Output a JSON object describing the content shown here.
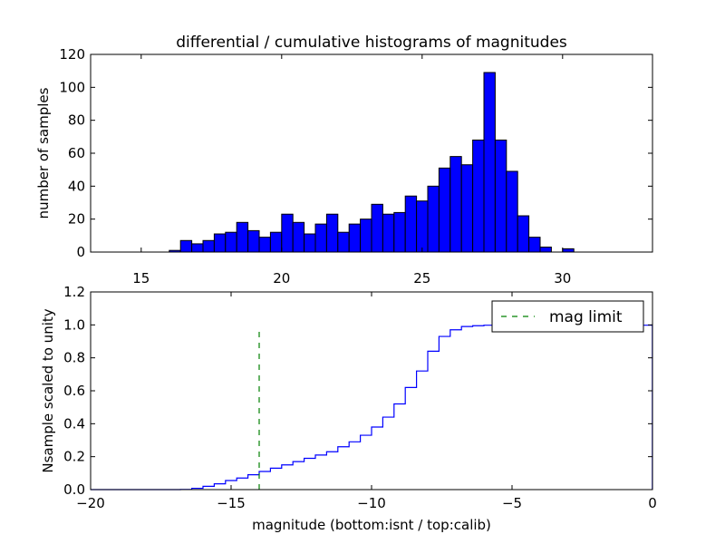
{
  "chart_data": [
    {
      "type": "bar",
      "title": "differential / cumulative histograms of magnitudes",
      "xlabel": "",
      "ylabel": "number of samples",
      "xlim": [
        13.2,
        33.2
      ],
      "ylim": [
        0,
        120
      ],
      "xticks": [
        15,
        20,
        25,
        30
      ],
      "xtick_labels": [
        "15",
        "20",
        "25",
        "30"
      ],
      "yticks": [
        0,
        20,
        40,
        60,
        80,
        100,
        120
      ],
      "ytick_labels": [
        "0",
        "20",
        "40",
        "60",
        "80",
        "100",
        "120"
      ],
      "bin_width": 0.4,
      "bins": [
        {
          "left": 16.0,
          "value": 1
        },
        {
          "left": 16.4,
          "value": 7
        },
        {
          "left": 16.8,
          "value": 5
        },
        {
          "left": 17.2,
          "value": 7
        },
        {
          "left": 17.6,
          "value": 11
        },
        {
          "left": 18.0,
          "value": 12
        },
        {
          "left": 18.4,
          "value": 18
        },
        {
          "left": 18.8,
          "value": 13
        },
        {
          "left": 19.2,
          "value": 9
        },
        {
          "left": 19.6,
          "value": 12
        },
        {
          "left": 20.0,
          "value": 23
        },
        {
          "left": 20.4,
          "value": 18
        },
        {
          "left": 20.8,
          "value": 11
        },
        {
          "left": 21.2,
          "value": 17
        },
        {
          "left": 21.6,
          "value": 23
        },
        {
          "left": 22.0,
          "value": 12
        },
        {
          "left": 22.4,
          "value": 17
        },
        {
          "left": 22.8,
          "value": 20
        },
        {
          "left": 23.2,
          "value": 29
        },
        {
          "left": 23.6,
          "value": 23
        },
        {
          "left": 24.0,
          "value": 24
        },
        {
          "left": 24.4,
          "value": 34
        },
        {
          "left": 24.8,
          "value": 31
        },
        {
          "left": 25.2,
          "value": 40
        },
        {
          "left": 25.6,
          "value": 51
        },
        {
          "left": 26.0,
          "value": 58
        },
        {
          "left": 26.4,
          "value": 53
        },
        {
          "left": 26.8,
          "value": 68
        },
        {
          "left": 27.2,
          "value": 109
        },
        {
          "left": 27.6,
          "value": 68
        },
        {
          "left": 28.0,
          "value": 49
        },
        {
          "left": 28.4,
          "value": 22
        },
        {
          "left": 28.8,
          "value": 9
        },
        {
          "left": 29.2,
          "value": 3
        },
        {
          "left": 29.6,
          "value": 0
        },
        {
          "left": 30.0,
          "value": 2
        }
      ],
      "bar_color": "#0000ff"
    },
    {
      "type": "line",
      "title": "",
      "xlabel": "magnitude (bottom:isnt / top:calib)",
      "ylabel": "Nsample scaled to unity",
      "xlim": [
        -20,
        0
      ],
      "ylim": [
        0.0,
        1.2
      ],
      "xticks": [
        -20,
        -15,
        -10,
        -5,
        0
      ],
      "xtick_labels": [
        "−20",
        "−15",
        "−10",
        "−5",
        "0"
      ],
      "yticks": [
        0.0,
        0.2,
        0.4,
        0.6,
        0.8,
        1.0,
        1.2
      ],
      "ytick_labels": [
        "0.0",
        "0.2",
        "0.4",
        "0.6",
        "0.8",
        "1.0",
        "1.2"
      ],
      "series": [
        {
          "name": "cumulative",
          "style": "step",
          "color": "#0000ff",
          "x": [
            -20,
            -16.8,
            -16.4,
            -16.0,
            -15.6,
            -15.2,
            -14.8,
            -14.4,
            -14.0,
            -13.6,
            -13.2,
            -12.8,
            -12.4,
            -12.0,
            -11.6,
            -11.2,
            -10.8,
            -10.4,
            -10.0,
            -9.6,
            -9.2,
            -8.8,
            -8.4,
            -8.0,
            -7.6,
            -7.2,
            -6.8,
            -6.4,
            -6.0,
            -0.01
          ],
          "y": [
            0.0,
            0.001,
            0.008,
            0.02,
            0.035,
            0.055,
            0.07,
            0.09,
            0.11,
            0.13,
            0.15,
            0.17,
            0.19,
            0.21,
            0.23,
            0.26,
            0.29,
            0.33,
            0.38,
            0.44,
            0.52,
            0.62,
            0.72,
            0.84,
            0.93,
            0.97,
            0.99,
            0.995,
            0.998,
            1.0
          ]
        },
        {
          "name": "mag limit",
          "style": "dashed",
          "color": "#008000",
          "x": [
            -14.0,
            -14.0
          ],
          "y": [
            0.0,
            0.97
          ]
        }
      ],
      "legend": {
        "entries": [
          "mag limit"
        ],
        "location": "upper right"
      }
    }
  ]
}
